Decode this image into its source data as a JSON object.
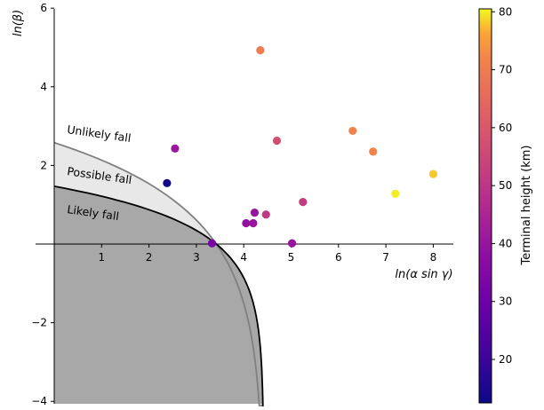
{
  "chart_data": {
    "type": "scatter",
    "title": "",
    "xlabel": "ln(α sin γ)",
    "ylabel": "ln(β)",
    "xlim": [
      0,
      8.4
    ],
    "ylim": [
      -4,
      6
    ],
    "xticks": [
      "1",
      "2",
      "3",
      "4",
      "5",
      "6",
      "7",
      "8"
    ],
    "yticks": [
      "−4",
      "−2",
      "2",
      "4",
      "6"
    ],
    "regions": [
      {
        "label": "Unlikely fall",
        "fill": "#ffffff"
      },
      {
        "label": "Possible fall",
        "fill": "#e8e8e8"
      },
      {
        "label": "Likely fall",
        "fill": "#a8a8a8"
      }
    ],
    "boundaries": [
      {
        "name": "outer",
        "y_at_x0": 2.58,
        "x_asym": 4.42,
        "color": "#808080"
      },
      {
        "name": "inner",
        "y_at_x0": 1.47,
        "x_asym": 4.42,
        "color": "#000000"
      }
    ],
    "points": [
      {
        "x": 4.35,
        "y": 4.93,
        "h": 70
      },
      {
        "x": 2.55,
        "y": 2.43,
        "h": 41
      },
      {
        "x": 2.38,
        "y": 1.55,
        "h": 13
      },
      {
        "x": 4.7,
        "y": 2.63,
        "h": 57
      },
      {
        "x": 6.3,
        "y": 2.88,
        "h": 71
      },
      {
        "x": 6.73,
        "y": 2.35,
        "h": 72
      },
      {
        "x": 8.0,
        "y": 1.78,
        "h": 78
      },
      {
        "x": 7.2,
        "y": 1.28,
        "h": 80
      },
      {
        "x": 5.25,
        "y": 1.07,
        "h": 52
      },
      {
        "x": 4.23,
        "y": 0.8,
        "h": 40
      },
      {
        "x": 4.47,
        "y": 0.75,
        "h": 51
      },
      {
        "x": 4.05,
        "y": 0.53,
        "h": 39
      },
      {
        "x": 4.2,
        "y": 0.53,
        "h": 40
      },
      {
        "x": 3.33,
        "y": 0.02,
        "h": 33
      },
      {
        "x": 5.02,
        "y": 0.02,
        "h": 40
      }
    ],
    "colorbar": {
      "label": "Terminal height (km)",
      "min": 12.5,
      "max": 80.5,
      "ticks": [
        "20",
        "30",
        "40",
        "50",
        "60",
        "70",
        "80"
      ],
      "colormap": "plasma"
    }
  }
}
